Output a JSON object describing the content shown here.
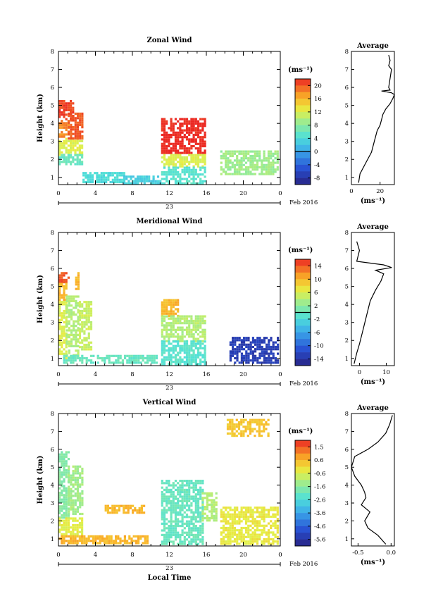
{
  "figure": {
    "x_axis_label": "Local Time",
    "date_label": "Feb 2016",
    "day_label": "23",
    "y_axis_label": "Height (km)",
    "unit_label": "(ms⁻¹)",
    "average_title": "Average",
    "average_x_label": "(ms⁻¹)"
  },
  "chart_data": [
    {
      "type": "heatmap",
      "title": "Zonal Wind",
      "xlabel": "",
      "ylabel": "Height (km)",
      "xlim": [
        0,
        24
      ],
      "ylim": [
        0.6,
        8
      ],
      "x_ticks": [
        "0",
        "4",
        "8",
        "12",
        "16",
        "20",
        "0"
      ],
      "y_ticks": [
        "1",
        "2",
        "3",
        "4",
        "5",
        "6",
        "7",
        "8"
      ],
      "colorbar": {
        "unit": "(ms⁻¹)",
        "min": -10,
        "max": 22,
        "ticks": [
          "20",
          "16",
          "12",
          "8",
          "4",
          "0",
          "-4",
          "-8"
        ],
        "contour_at": 0
      },
      "regions": [
        {
          "t": [
            0,
            1.5
          ],
          "h": [
            4.2,
            5.3
          ],
          "value": 21
        },
        {
          "t": [
            0,
            1.0
          ],
          "h": [
            3.2,
            4.2
          ],
          "value": 18
        },
        {
          "t": [
            0,
            2.6
          ],
          "h": [
            2.3,
            3.2
          ],
          "value": 12
        },
        {
          "t": [
            1.0,
            2.6
          ],
          "h": [
            3.2,
            4.6
          ],
          "value": 20
        },
        {
          "t": [
            0,
            2.6
          ],
          "h": [
            1.7,
            2.3
          ],
          "value": 6
        },
        {
          "t": [
            2.6,
            7.0
          ],
          "h": [
            0.7,
            1.3
          ],
          "value": 4
        },
        {
          "t": [
            7.0,
            11.0
          ],
          "h": [
            0.7,
            1.1
          ],
          "value": 3
        },
        {
          "t": [
            11.1,
            15.8
          ],
          "h": [
            2.3,
            4.3
          ],
          "value": 22
        },
        {
          "t": [
            11.1,
            15.8
          ],
          "h": [
            1.6,
            2.3
          ],
          "value": 12
        },
        {
          "t": [
            11.1,
            15.8
          ],
          "h": [
            0.7,
            1.6
          ],
          "value": 5
        },
        {
          "t": [
            17.5,
            23.8
          ],
          "h": [
            1.2,
            2.5
          ],
          "value": 9
        }
      ],
      "average": {
        "xlim": [
          0,
          30
        ],
        "x_ticks": [
          "0",
          "20"
        ],
        "profile": [
          [
            5,
            0.7
          ],
          [
            6,
            1.2
          ],
          [
            10,
            1.8
          ],
          [
            14,
            2.4
          ],
          [
            16,
            3.0
          ],
          [
            18,
            3.6
          ],
          [
            20,
            3.9
          ],
          [
            21,
            4.2
          ],
          [
            22,
            4.5
          ],
          [
            24,
            4.8
          ],
          [
            27,
            5.1
          ],
          [
            29,
            5.4
          ],
          [
            30,
            5.6
          ],
          [
            28,
            5.7
          ],
          [
            21,
            5.8
          ],
          [
            27,
            5.85
          ],
          [
            26,
            6.0
          ],
          [
            27,
            6.5
          ],
          [
            28,
            7.0
          ],
          [
            26,
            7.2
          ],
          [
            27,
            7.5
          ],
          [
            26,
            7.8
          ]
        ]
      }
    },
    {
      "type": "heatmap",
      "title": "Meridional Wind",
      "xlabel": "",
      "ylabel": "Height (km)",
      "xlim": [
        0,
        24
      ],
      "ylim": [
        0.6,
        8
      ],
      "x_ticks": [
        "0",
        "4",
        "8",
        "12",
        "16",
        "20",
        "0"
      ],
      "y_ticks": [
        "1",
        "2",
        "3",
        "4",
        "5",
        "6",
        "7",
        "8"
      ],
      "colorbar": {
        "unit": "(ms⁻¹)",
        "min": -16,
        "max": 16,
        "ticks": [
          "14",
          "10",
          "6",
          "2",
          "-2",
          "-6",
          "-10",
          "-14"
        ],
        "contour_at": 0
      },
      "regions": [
        {
          "t": [
            0,
            1.0
          ],
          "h": [
            5.2,
            5.8
          ],
          "value": 14
        },
        {
          "t": [
            0,
            0.8
          ],
          "h": [
            4.2,
            5.2
          ],
          "value": 10
        },
        {
          "t": [
            0,
            0.8
          ],
          "h": [
            1.0,
            4.2
          ],
          "value": 6
        },
        {
          "t": [
            0.8,
            2.2
          ],
          "h": [
            1.0,
            4.5
          ],
          "value": 4
        },
        {
          "t": [
            1.8,
            2.2
          ],
          "h": [
            4.8,
            5.8
          ],
          "value": 10
        },
        {
          "t": [
            2.2,
            3.6
          ],
          "h": [
            1.5,
            4.2
          ],
          "value": 5
        },
        {
          "t": [
            0.5,
            10.5
          ],
          "h": [
            0.7,
            1.2
          ],
          "value": 0
        },
        {
          "t": [
            11.1,
            13.0
          ],
          "h": [
            3.4,
            4.3
          ],
          "value": 10
        },
        {
          "t": [
            11.1,
            15.8
          ],
          "h": [
            2.0,
            3.4
          ],
          "value": 4
        },
        {
          "t": [
            11.1,
            15.8
          ],
          "h": [
            0.7,
            2.0
          ],
          "value": -1
        },
        {
          "t": [
            18.5,
            23.8
          ],
          "h": [
            0.7,
            2.2
          ],
          "value": -13
        }
      ],
      "average": {
        "xlim": [
          -3,
          13
        ],
        "x_ticks": [
          "0",
          "10"
        ],
        "profile": [
          [
            -2,
            0.7
          ],
          [
            -1,
            1.3
          ],
          [
            0,
            1.8
          ],
          [
            1,
            2.4
          ],
          [
            2,
            3.0
          ],
          [
            3,
            3.6
          ],
          [
            4,
            4.2
          ],
          [
            6,
            4.8
          ],
          [
            8,
            5.3
          ],
          [
            9,
            5.7
          ],
          [
            6,
            5.9
          ],
          [
            12,
            6.05
          ],
          [
            9,
            6.2
          ],
          [
            -1,
            6.4
          ],
          [
            0,
            7.0
          ],
          [
            -1,
            7.5
          ]
        ]
      }
    },
    {
      "type": "heatmap",
      "title": "Vertical Wind",
      "xlabel": "Local Time",
      "ylabel": "Height (km)",
      "xlim": [
        0,
        24
      ],
      "ylim": [
        0.6,
        8
      ],
      "x_ticks": [
        "0",
        "4",
        "8",
        "12",
        "16",
        "20",
        "0"
      ],
      "y_ticks": [
        "1",
        "2",
        "3",
        "4",
        "5",
        "6",
        "7",
        "8"
      ],
      "colorbar": {
        "unit": "(ms⁻¹)",
        "min": -6,
        "max": 2,
        "ticks": [
          "1.5",
          "0.6",
          "-0.6",
          "-1.6",
          "-2.6",
          "-3.6",
          "-4.6",
          "-5.6"
        ]
      },
      "regions": [
        {
          "t": [
            0,
            1.0
          ],
          "h": [
            2.2,
            5.9
          ],
          "value": -1.6
        },
        {
          "t": [
            1.0,
            2.6
          ],
          "h": [
            2.4,
            5.1
          ],
          "value": -1.2
        },
        {
          "t": [
            0,
            2.6
          ],
          "h": [
            1.3,
            2.2
          ],
          "value": -0.4
        },
        {
          "t": [
            0,
            9.7
          ],
          "h": [
            0.7,
            1.2
          ],
          "value": 0.5
        },
        {
          "t": [
            5.0,
            9.2
          ],
          "h": [
            2.5,
            2.9
          ],
          "value": 0.5
        },
        {
          "t": [
            11.1,
            15.5
          ],
          "h": [
            0.7,
            4.3
          ],
          "value": -2.0
        },
        {
          "t": [
            15.5,
            17.0
          ],
          "h": [
            2.0,
            3.6
          ],
          "value": -1.0
        },
        {
          "t": [
            17.5,
            23.8
          ],
          "h": [
            0.7,
            2.8
          ],
          "value": -0.3
        },
        {
          "t": [
            18.2,
            22.8
          ],
          "h": [
            6.8,
            7.7
          ],
          "value": 0.3
        }
      ],
      "average": {
        "xlim": [
          -0.6,
          0.05
        ],
        "x_ticks": [
          "-0.5",
          "0.0"
        ],
        "profile": [
          [
            -0.08,
            0.7
          ],
          [
            -0.2,
            1.2
          ],
          [
            -0.35,
            1.6
          ],
          [
            -0.4,
            2.0
          ],
          [
            -0.32,
            2.5
          ],
          [
            -0.45,
            2.9
          ],
          [
            -0.38,
            3.3
          ],
          [
            -0.4,
            3.6
          ],
          [
            -0.45,
            4.0
          ],
          [
            -0.55,
            4.5
          ],
          [
            -0.6,
            5.0
          ],
          [
            -0.55,
            5.6
          ],
          [
            -0.35,
            6.0
          ],
          [
            -0.2,
            6.4
          ],
          [
            -0.08,
            6.9
          ],
          [
            -0.02,
            7.4
          ],
          [
            0.02,
            7.9
          ]
        ]
      }
    }
  ]
}
